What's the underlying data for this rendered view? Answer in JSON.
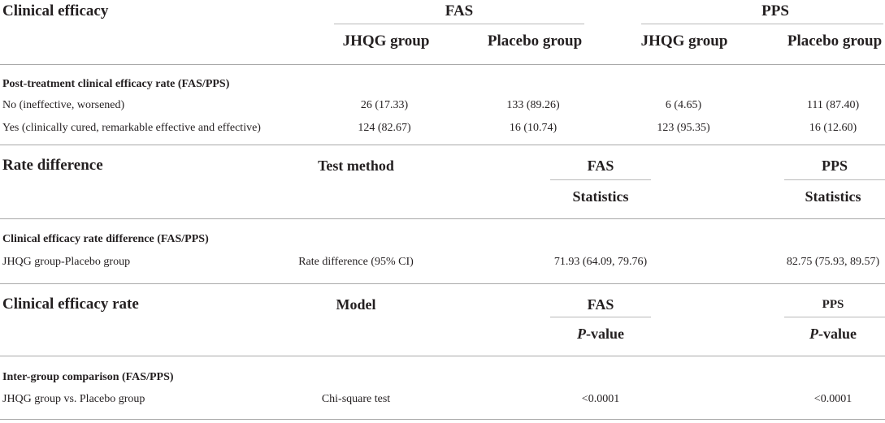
{
  "t1": {
    "header": "Clinical efficacy",
    "fas": "FAS",
    "pps": "PPS",
    "jhqg": "JHQG group",
    "placebo": "Placebo group",
    "section": "Post-treatment clinical efficacy rate (FAS/PPS)",
    "rows": [
      {
        "label": "No (ineffective, worsened)",
        "v": [
          "26 (17.33)",
          "133 (89.26)",
          "6 (4.65)",
          "111 (87.40)"
        ]
      },
      {
        "label": "Yes (clinically cured, remarkable effective and effective)",
        "v": [
          "124 (82.67)",
          "16 (10.74)",
          "123 (95.35)",
          "16 (12.60)"
        ]
      }
    ]
  },
  "t2": {
    "header": "Rate difference",
    "method": "Test method",
    "fas": "FAS",
    "pps": "PPS",
    "stat": "Statistics",
    "section": "Clinical efficacy rate difference (FAS/PPS)",
    "row": {
      "label": "JHQG group-Placebo group",
      "method": "Rate difference (95% CI)",
      "fas": "71.93 (64.09, 79.76)",
      "pps": "82.75 (75.93, 89.57)"
    }
  },
  "t3": {
    "header": "Clinical efficacy rate",
    "model": "Model",
    "fas": "FAS",
    "pps": "PPS",
    "p": "P",
    "value": "-value",
    "section": "Inter-group comparison (FAS/PPS)",
    "row": {
      "label": "JHQG group vs. Placebo group",
      "model": "Chi-square test",
      "fas": "<0.0001",
      "pps": "<0.0001"
    }
  }
}
